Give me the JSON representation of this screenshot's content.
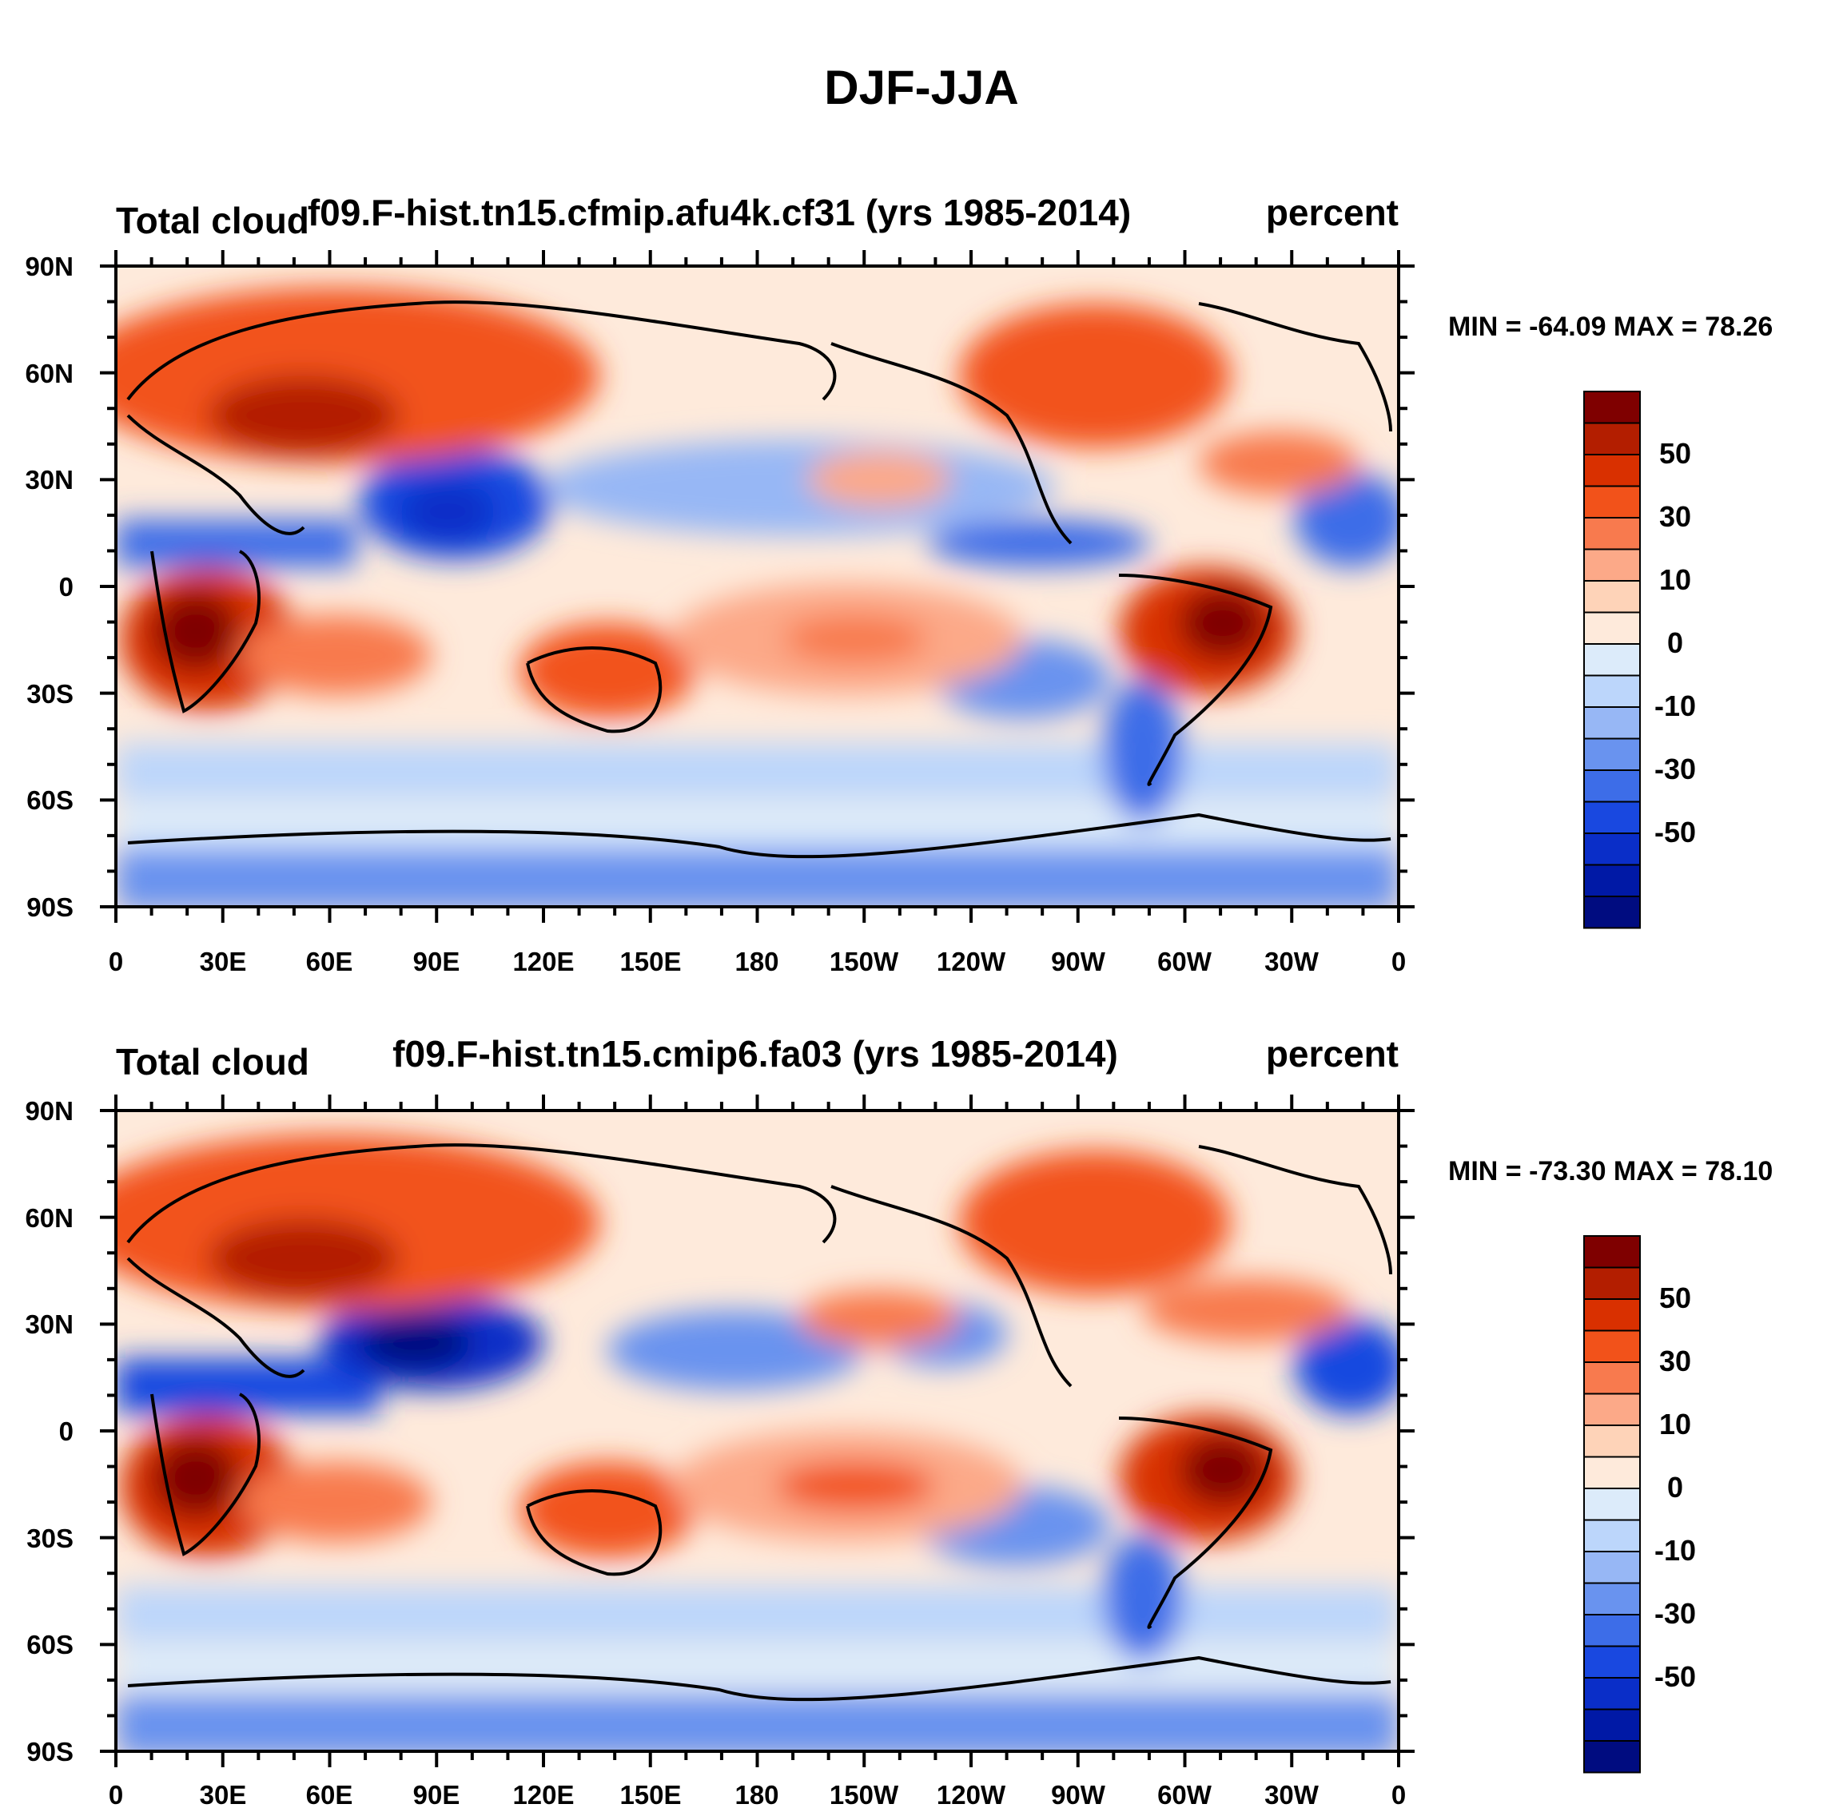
{
  "figure": {
    "title": "DJF-JJA"
  },
  "lon_labels": [
    "0",
    "30E",
    "60E",
    "90E",
    "120E",
    "150E",
    "180",
    "150W",
    "120W",
    "90W",
    "60W",
    "30W",
    "0"
  ],
  "lat_labels": [
    "90N",
    "60N",
    "30N",
    "0",
    "30S",
    "60S",
    "90S"
  ],
  "colorbar": {
    "labels": [
      "50",
      "30",
      "10",
      "0",
      "-10",
      "-30",
      "-50"
    ],
    "colors": [
      "#7f0000",
      "#b31e00",
      "#d93000",
      "#f2521a",
      "#f87a4e",
      "#fca988",
      "#fed3b8",
      "#feeadb",
      "#dcebfa",
      "#bcd6fb",
      "#97b7f5",
      "#6993ef",
      "#3d6de8",
      "#1948e0",
      "#0a2ec8",
      "#0019a6",
      "#000c80"
    ]
  },
  "panels": [
    {
      "left_title": "Total cloud",
      "center_title": "f09.F-hist.tn15.cfmip.afu4k.cf31 (yrs 1985-2014)",
      "right_title": "percent",
      "stats": "MIN = -64.09 MAX =  78.26"
    },
    {
      "left_title": "Total cloud",
      "center_title": "f09.F-hist.tn15.cmip6.fa03 (yrs 1985-2014)",
      "right_title": "percent",
      "stats": "MIN = -73.30 MAX =  78.10"
    }
  ]
}
